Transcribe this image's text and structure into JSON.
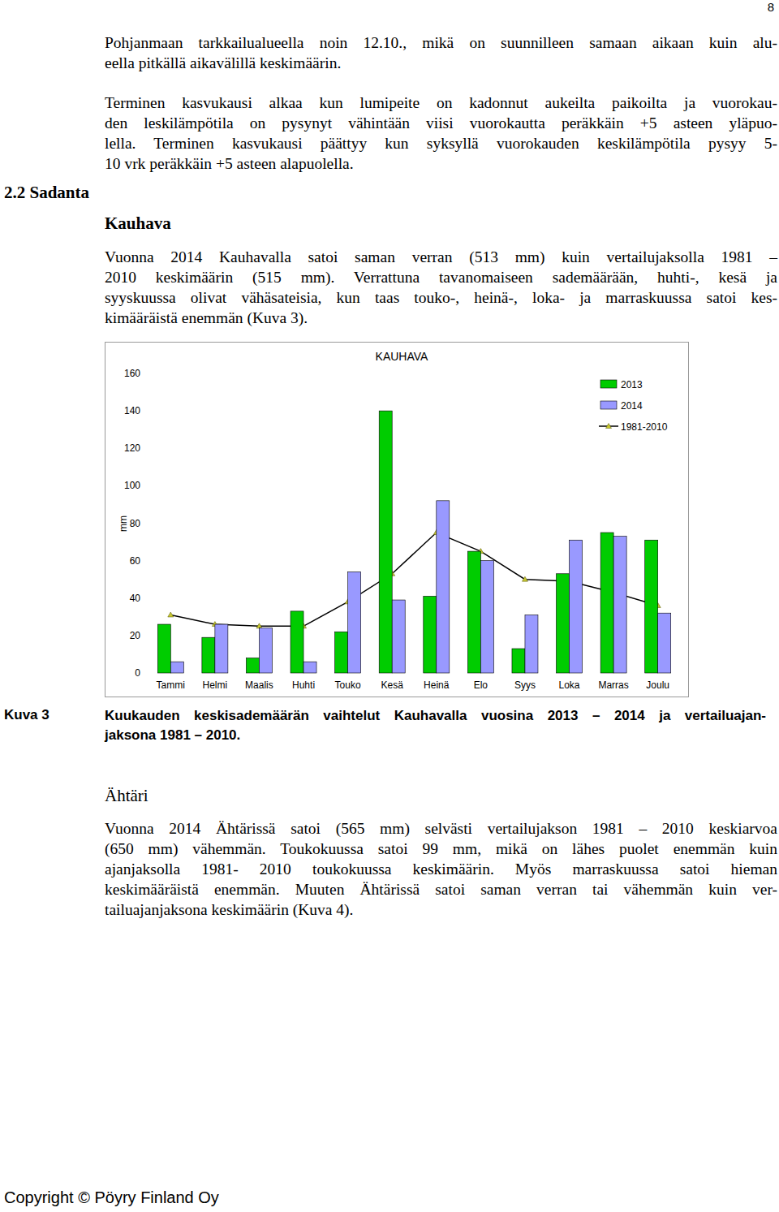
{
  "page": {
    "number": "8",
    "intro": [
      "Pohjanmaan tarkkailualueella noin 12.10., mikä on suunnilleen samaan aikaan kuin alu-",
      "eella pitkällä aikavälillä keskimäärin."
    ],
    "growth": [
      "Terminen kasvukausi alkaa kun lumipeite on kadonnut aukeilta paikoilta ja vuorokau-",
      "den leskilämpötila on pysynyt vähintään viisi vuorokautta peräkkäin +5 asteen yläpuo-",
      "lella. Terminen kasvukausi päättyy kun syksyllä vuorokauden keskilämpötila pysyy 5-",
      "10 vrk peräkkäin +5 asteen alapuolella."
    ],
    "section": "2.2 Sadanta",
    "kauhava": {
      "heading": "Kauhava",
      "text": [
        "Vuonna 2014 Kauhavalla satoi saman verran (513 mm) kuin vertailujaksolla 1981 –",
        "2010 keskimäärin (515 mm). Verrattuna tavanomaiseen sademäärään, huhti-, kesä ja",
        "syyskuussa olivat vähäsateisia, kun taas touko-, heinä-, loka- ja marraskuussa satoi kes-",
        "kimääräistä enemmän (Kuva 3)."
      ]
    },
    "caption": {
      "label": "Kuva 3",
      "text": [
        "Kuukauden keskisademäärän vaihtelut Kauhavalla vuosina 2013 – 2014 ja vertailuajan-",
        "jaksona 1981 – 2010."
      ]
    },
    "ahtari": {
      "heading": "Ähtäri",
      "text": [
        "Vuonna 2014 Ähtärissä satoi (565 mm) selvästi vertailujakson 1981 – 2010 keskiarvoa",
        "(650 mm) vähemmän. Toukokuussa satoi 99 mm, mikä on lähes puolet enemmän kuin",
        "ajanjaksolla 1981- 2010 toukokuussa keskimäärin. Myös marraskuussa satoi hieman",
        "keskimääräistä enemmän. Muuten Ähtärissä satoi saman verran tai vähemmän kuin ver-",
        "tailuajanjaksona keskimäärin (Kuva 4)."
      ]
    },
    "footer": "Copyright © Pöyry Finland Oy"
  },
  "chart_data": {
    "type": "bar",
    "title": "KAUHAVA",
    "y_label": "mm",
    "categories": [
      "Tammi",
      "Helmi",
      "Maalis",
      "Huhti",
      "Touko",
      "Kesä",
      "Heinä",
      "Elo",
      "Syys",
      "Loka",
      "Marras",
      "Joulu"
    ],
    "series": [
      {
        "name": "2013",
        "color": "#00cc00",
        "values": [
          26,
          19,
          8,
          33,
          22,
          140,
          41,
          65,
          13,
          53,
          75,
          71
        ]
      },
      {
        "name": "2014",
        "color": "#9999ff",
        "values": [
          6,
          26,
          24,
          6,
          54,
          39,
          92,
          60,
          31,
          71,
          73,
          32
        ]
      },
      {
        "name": "1981-2010",
        "type": "line",
        "color": "#000000",
        "marker": "triangle",
        "values": [
          31,
          26,
          25,
          25,
          38,
          53,
          75,
          65,
          50,
          49,
          43,
          36
        ]
      }
    ],
    "ylim": [
      0,
      160
    ],
    "yticks": [
      0,
      20,
      40,
      60,
      80,
      100,
      120,
      140,
      160
    ],
    "grid": false,
    "legend": "upper right"
  }
}
